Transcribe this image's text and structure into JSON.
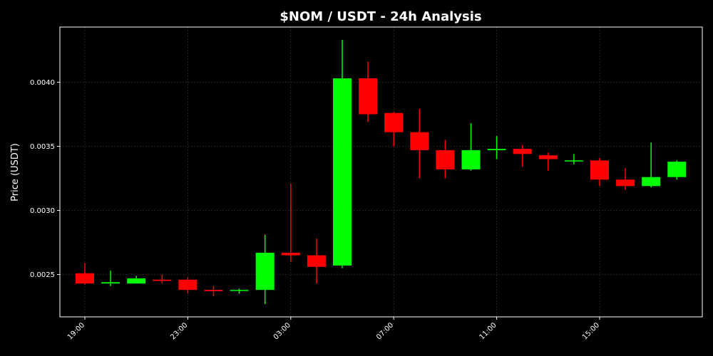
{
  "chart_data": {
    "type": "candlestick",
    "title": "$NOM / USDT - 24h Analysis",
    "xlabel": "",
    "ylabel": "Price (USDT)",
    "ylim": [
      0.00217,
      0.00443
    ],
    "grid": true,
    "colors": {
      "background": "#000000",
      "up": "#00ff00",
      "down": "#ff0000",
      "frame": "#ffffff",
      "grid": "#2a2a2a"
    },
    "y_ticks": [
      {
        "value": 0.0025,
        "label": "0.0025"
      },
      {
        "value": 0.003,
        "label": "0.0030"
      },
      {
        "value": 0.0035,
        "label": "0.0035"
      },
      {
        "value": 0.004,
        "label": "0.0040"
      }
    ],
    "x_ticks": [
      {
        "index": 0,
        "label": "19:00"
      },
      {
        "index": 4,
        "label": "23:00"
      },
      {
        "index": 8,
        "label": "03:00"
      },
      {
        "index": 12,
        "label": "07:00"
      },
      {
        "index": 16,
        "label": "11:00"
      },
      {
        "index": 20,
        "label": "15:00"
      }
    ],
    "candles": [
      {
        "time": "19:00",
        "open": 0.00251,
        "high": 0.00259,
        "low": 0.00242,
        "close": 0.00243
      },
      {
        "time": "20:00",
        "open": 0.00243,
        "high": 0.00253,
        "low": 0.00241,
        "close": 0.00244
      },
      {
        "time": "21:00",
        "open": 0.00243,
        "high": 0.00249,
        "low": 0.00243,
        "close": 0.00247
      },
      {
        "time": "22:00",
        "open": 0.00246,
        "high": 0.0025,
        "low": 0.00243,
        "close": 0.00245
      },
      {
        "time": "23:00",
        "open": 0.00246,
        "high": 0.00248,
        "low": 0.00235,
        "close": 0.00238
      },
      {
        "time": "00:00",
        "open": 0.00238,
        "high": 0.00241,
        "low": 0.00233,
        "close": 0.00237
      },
      {
        "time": "01:00",
        "open": 0.00238,
        "high": 0.00239,
        "low": 0.00235,
        "close": 0.00238
      },
      {
        "time": "02:00",
        "open": 0.00238,
        "high": 0.00281,
        "low": 0.00227,
        "close": 0.00267
      },
      {
        "time": "03:00",
        "open": 0.00267,
        "high": 0.00321,
        "low": 0.0026,
        "close": 0.00265
      },
      {
        "time": "04:00",
        "open": 0.00265,
        "high": 0.00278,
        "low": 0.00243,
        "close": 0.00256
      },
      {
        "time": "05:00",
        "open": 0.00257,
        "high": 0.00433,
        "low": 0.00255,
        "close": 0.00403
      },
      {
        "time": "06:00",
        "open": 0.00403,
        "high": 0.00416,
        "low": 0.00369,
        "close": 0.00375
      },
      {
        "time": "07:00",
        "open": 0.00376,
        "high": 0.00377,
        "low": 0.0035,
        "close": 0.00361
      },
      {
        "time": "08:00",
        "open": 0.00361,
        "high": 0.00379,
        "low": 0.00325,
        "close": 0.00347
      },
      {
        "time": "09:00",
        "open": 0.00347,
        "high": 0.00355,
        "low": 0.00325,
        "close": 0.00332
      },
      {
        "time": "10:00",
        "open": 0.00332,
        "high": 0.00368,
        "low": 0.00331,
        "close": 0.00347
      },
      {
        "time": "11:00",
        "open": 0.00347,
        "high": 0.00358,
        "low": 0.0034,
        "close": 0.00348
      },
      {
        "time": "12:00",
        "open": 0.00348,
        "high": 0.00351,
        "low": 0.00334,
        "close": 0.00344
      },
      {
        "time": "13:00",
        "open": 0.00343,
        "high": 0.00345,
        "low": 0.00331,
        "close": 0.0034
      },
      {
        "time": "14:00",
        "open": 0.00339,
        "high": 0.00344,
        "low": 0.00336,
        "close": 0.00339
      },
      {
        "time": "15:00",
        "open": 0.00339,
        "high": 0.00341,
        "low": 0.00319,
        "close": 0.00324
      },
      {
        "time": "16:00",
        "open": 0.00324,
        "high": 0.00333,
        "low": 0.00316,
        "close": 0.00319
      },
      {
        "time": "17:00",
        "open": 0.00319,
        "high": 0.00353,
        "low": 0.00318,
        "close": 0.00326
      },
      {
        "time": "18:00",
        "open": 0.00326,
        "high": 0.00339,
        "low": 0.00324,
        "close": 0.00338
      }
    ]
  }
}
